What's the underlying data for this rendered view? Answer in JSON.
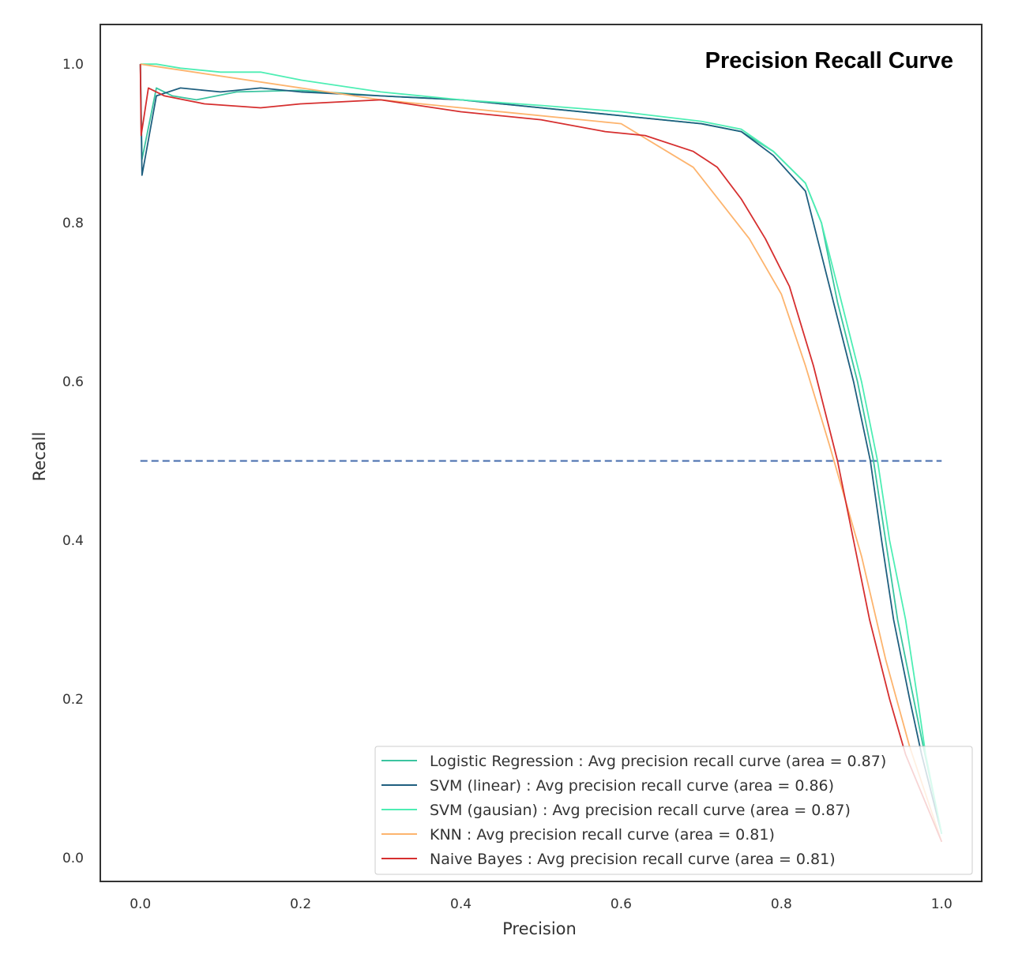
{
  "chart_data": {
    "type": "line",
    "title": "Precision Recall Curve",
    "xlabel": "Precision",
    "ylabel": "Recall",
    "xlim": [
      -0.05,
      1.05
    ],
    "ylim": [
      -0.03,
      1.05
    ],
    "xticks": [
      "0.0",
      "0.2",
      "0.4",
      "0.6",
      "0.8",
      "1.0"
    ],
    "yticks": [
      "0.0",
      "0.2",
      "0.4",
      "0.6",
      "0.8",
      "1.0"
    ],
    "grid": false,
    "legend_position": "lower-right",
    "reference_line": {
      "y": 0.5,
      "x": [
        0,
        1
      ],
      "style": "dashed",
      "color": "#4c72b0"
    },
    "series": [
      {
        "name": "Logistic Regression : Avg precision recall curve (area = 0.87)",
        "color": "#3cc4a0",
        "x": [
          0,
          0.002,
          0.02,
          0.04,
          0.07,
          0.12,
          0.2,
          0.3,
          0.4,
          0.5,
          0.6,
          0.7,
          0.75,
          0.79,
          0.83,
          0.85,
          0.87,
          0.895,
          0.915,
          0.93,
          0.945,
          0.965,
          0.975,
          1.0
        ],
        "y": [
          1.0,
          0.88,
          0.97,
          0.96,
          0.955,
          0.965,
          0.967,
          0.96,
          0.955,
          0.945,
          0.935,
          0.925,
          0.915,
          0.89,
          0.85,
          0.8,
          0.7,
          0.6,
          0.5,
          0.4,
          0.3,
          0.2,
          0.15,
          0.03
        ]
      },
      {
        "name": "SVM (linear) : Avg precision recall curve (area = 0.86)",
        "color": "#1f5f7f",
        "x": [
          0,
          0.002,
          0.02,
          0.05,
          0.1,
          0.15,
          0.2,
          0.3,
          0.4,
          0.5,
          0.6,
          0.7,
          0.75,
          0.79,
          0.83,
          0.845,
          0.865,
          0.89,
          0.911,
          0.925,
          0.94,
          0.96,
          0.975,
          1.0
        ],
        "y": [
          1.0,
          0.86,
          0.96,
          0.97,
          0.965,
          0.97,
          0.965,
          0.96,
          0.955,
          0.945,
          0.935,
          0.925,
          0.915,
          0.885,
          0.84,
          0.78,
          0.7,
          0.6,
          0.5,
          0.4,
          0.3,
          0.2,
          0.13,
          0.03
        ]
      },
      {
        "name": "SVM (gausian) : Avg precision recall curve (area = 0.87)",
        "color": "#4eeeb4",
        "x": [
          0,
          0.02,
          0.05,
          0.1,
          0.15,
          0.2,
          0.3,
          0.4,
          0.5,
          0.6,
          0.7,
          0.75,
          0.79,
          0.83,
          0.85,
          0.875,
          0.9,
          0.92,
          0.935,
          0.955,
          0.97,
          0.98,
          1.0
        ],
        "y": [
          1.0,
          1.0,
          0.995,
          0.99,
          0.99,
          0.98,
          0.965,
          0.955,
          0.948,
          0.94,
          0.928,
          0.918,
          0.89,
          0.85,
          0.8,
          0.7,
          0.6,
          0.5,
          0.4,
          0.3,
          0.2,
          0.13,
          0.03
        ]
      },
      {
        "name": "KNN : Avg precision recall curve (area = 0.81)",
        "color": "#fdb46e",
        "x": [
          0,
          0.3,
          0.6,
          0.69,
          0.76,
          0.8,
          0.83,
          0.86,
          0.9,
          0.93,
          0.96,
          1.0
        ],
        "y": [
          1.0,
          0.955,
          0.925,
          0.87,
          0.78,
          0.71,
          0.62,
          0.52,
          0.38,
          0.25,
          0.14,
          0.02
        ]
      },
      {
        "name": "Naive Bayes : Avg precision recall curve (area = 0.81)",
        "color": "#d62f2f",
        "x": [
          0,
          0.001,
          0.01,
          0.03,
          0.08,
          0.15,
          0.2,
          0.3,
          0.4,
          0.5,
          0.58,
          0.63,
          0.69,
          0.72,
          0.75,
          0.78,
          0.81,
          0.84,
          0.87,
          0.89,
          0.91,
          0.935,
          0.955,
          1.0
        ],
        "y": [
          1.0,
          0.91,
          0.97,
          0.96,
          0.95,
          0.945,
          0.95,
          0.955,
          0.94,
          0.93,
          0.915,
          0.91,
          0.89,
          0.87,
          0.83,
          0.78,
          0.72,
          0.62,
          0.5,
          0.4,
          0.3,
          0.2,
          0.13,
          0.02
        ]
      }
    ]
  }
}
